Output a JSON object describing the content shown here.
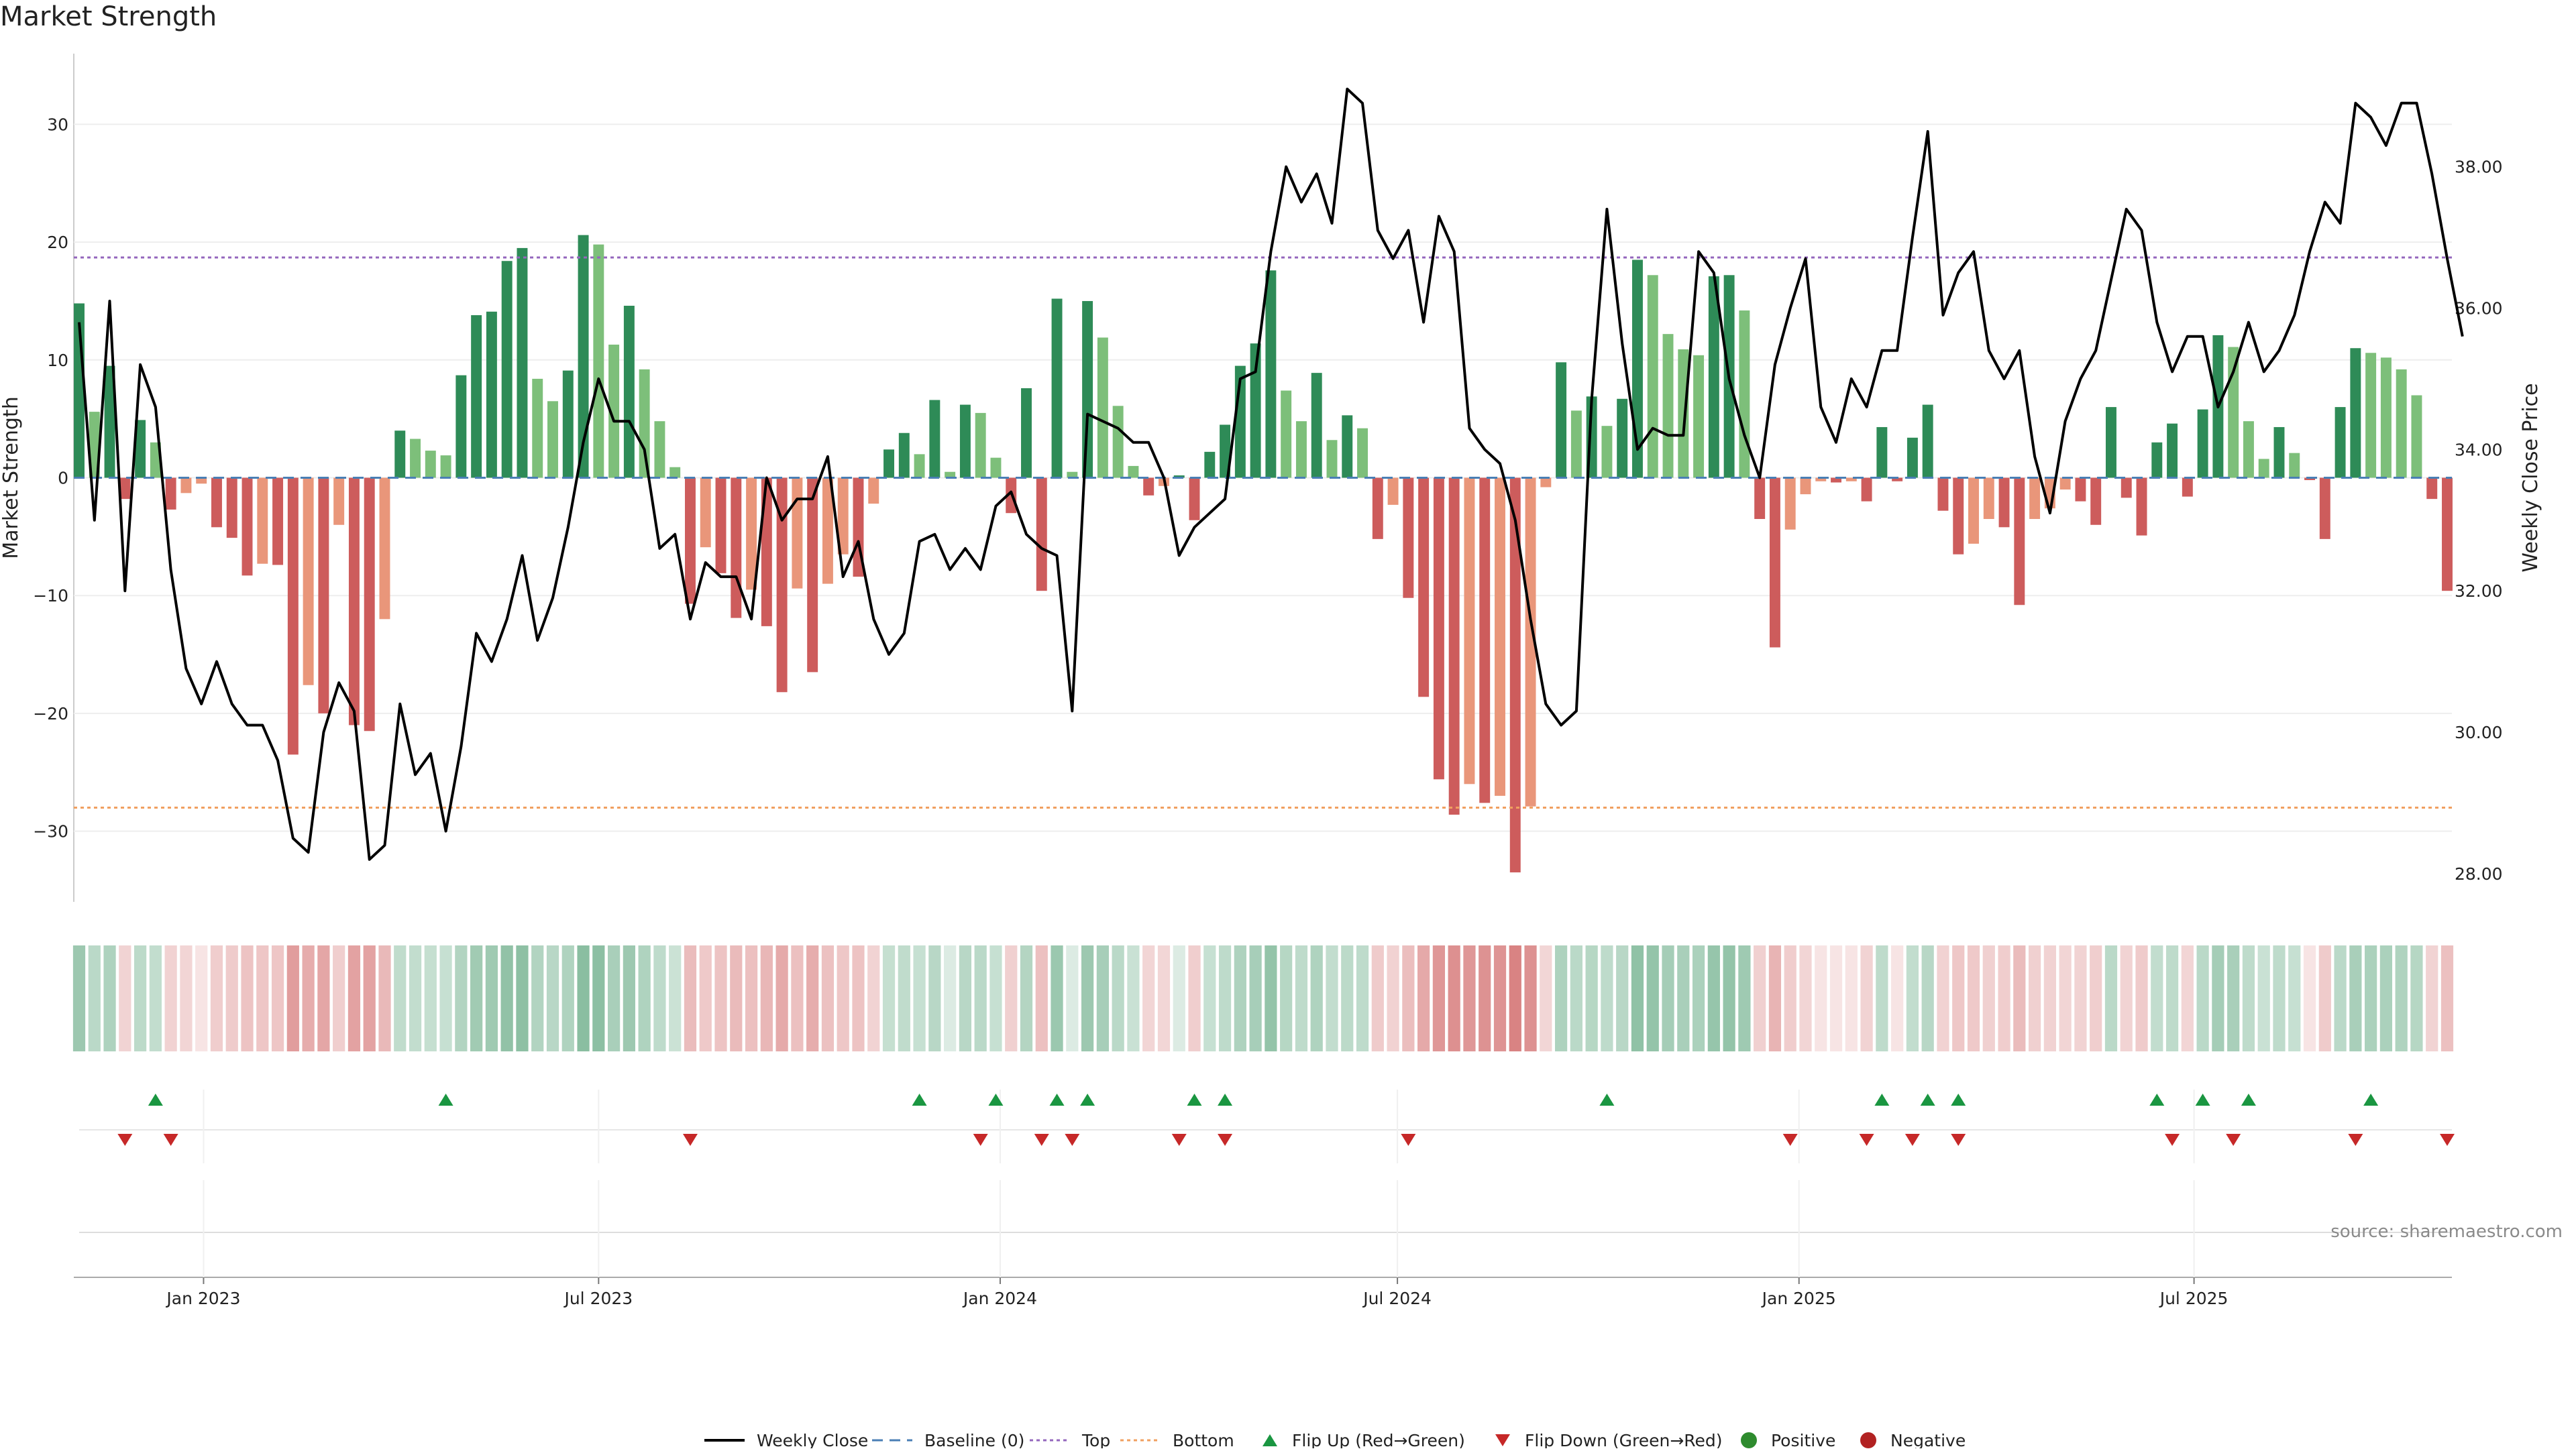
{
  "title": "Market Strength",
  "source": "source: sharemaestro.com",
  "chart_data": {
    "type": "bar",
    "title": "Market Strength",
    "ylabel": "Market Strength",
    "y2label": "Weekly Close Price",
    "ylim": [
      -36,
      36
    ],
    "y2lim": [
      27.6,
      39.6
    ],
    "yticks": [
      -30,
      -20,
      -10,
      0,
      10,
      20,
      30
    ],
    "yticks_labels": [
      "−30",
      "−20",
      "−10",
      "0",
      "10",
      "20",
      "30"
    ],
    "y2ticks": [
      28,
      30,
      32,
      34,
      36,
      38
    ],
    "y2ticks_labels": [
      "28.00",
      "30.00",
      "32.00",
      "34.00",
      "36.00",
      "38.00"
    ],
    "date_range": [
      "2022-11-05",
      "2025-10-25"
    ],
    "x_ticks": [
      {
        "date": "2023-01-01",
        "label": "Jan 2023"
      },
      {
        "date": "2023-07-01",
        "label": "Jul 2023"
      },
      {
        "date": "2024-01-01",
        "label": "Jan 2024"
      },
      {
        "date": "2024-07-01",
        "label": "Jul 2024"
      },
      {
        "date": "2025-01-01",
        "label": "Jan 2025"
      },
      {
        "date": "2025-07-01",
        "label": "Jul 2025"
      }
    ],
    "top_line": 18.7,
    "bottom_line": -28,
    "baseline": 0,
    "grid": true,
    "legend_position": "bottom-center",
    "weeks": 156,
    "strength": [
      14.8,
      5.6,
      9.5,
      -1.8,
      4.9,
      3.0,
      -2.7,
      -1.3,
      -0.5,
      -4.2,
      -5.1,
      -8.3,
      -7.3,
      -7.4,
      -23.5,
      -17.6,
      -20.0,
      -4.0,
      -21.0,
      -21.5,
      -12.0,
      4.0,
      3.3,
      2.3,
      1.9,
      8.7,
      13.8,
      14.1,
      18.4,
      19.5,
      8.4,
      6.5,
      9.1,
      20.6,
      19.8,
      11.3,
      14.6,
      9.2,
      4.8,
      0.9,
      -10.7,
      -5.9,
      -8.1,
      -11.9,
      -9.5,
      -12.6,
      -18.2,
      -9.4,
      -16.5,
      -9.0,
      -6.5,
      -8.4,
      -2.2,
      2.4,
      3.8,
      2.0,
      6.6,
      0.5,
      6.2,
      5.5,
      1.7,
      -3.0,
      7.6,
      -9.6,
      15.2,
      0.5,
      15.0,
      11.9,
      6.1,
      1.0,
      -1.5,
      -0.7,
      0.2,
      -3.6,
      2.2,
      4.5,
      9.5,
      11.4,
      17.6,
      7.4,
      4.8,
      8.9,
      3.2,
      5.3,
      4.2,
      -5.2,
      -2.3,
      -10.2,
      -18.6,
      -25.6,
      -28.6,
      -26.0,
      -27.6,
      -27.0,
      -33.5,
      -27.9,
      -0.8,
      9.8,
      5.7,
      6.9,
      4.4,
      6.7,
      18.5,
      17.2,
      12.2,
      10.9,
      10.4,
      17.1,
      17.2,
      14.2,
      -3.5,
      -14.4,
      -4.4,
      -1.4,
      -0.3,
      -0.4,
      -0.3,
      -2.0,
      4.3,
      -0.3,
      3.4,
      6.2,
      -2.8,
      -6.5,
      -5.6,
      -3.5,
      -4.2,
      -10.8,
      -3.5,
      -2.6,
      -1.0,
      -2.0,
      -4.0,
      6.0,
      -1.7,
      -4.9,
      3.0,
      4.6,
      -1.6,
      5.8,
      12.1,
      11.1,
      4.8,
      1.6,
      4.3,
      2.1,
      -0.2,
      -5.2,
      6.0,
      11.0,
      10.6,
      10.2,
      9.2,
      7.0,
      -1.8,
      -9.6
    ],
    "weekly_close": [
      35.8,
      33.0,
      36.1,
      32.0,
      35.2,
      34.6,
      32.3,
      30.9,
      30.4,
      31.0,
      30.4,
      30.1,
      30.1,
      29.6,
      28.5,
      28.3,
      30.0,
      30.7,
      30.3,
      28.2,
      28.4,
      30.4,
      29.4,
      29.7,
      28.6,
      29.8,
      31.4,
      31.0,
      31.6,
      32.5,
      31.3,
      31.9,
      32.9,
      34.1,
      35.0,
      34.4,
      34.4,
      34.0,
      32.6,
      32.8,
      31.6,
      32.4,
      32.2,
      32.2,
      31.6,
      33.6,
      33.0,
      33.3,
      33.3,
      33.9,
      32.2,
      32.7,
      31.6,
      31.1,
      31.4,
      32.7,
      32.8,
      32.3,
      32.6,
      32.3,
      33.2,
      33.4,
      32.8,
      32.6,
      32.5,
      30.3,
      34.5,
      34.4,
      34.3,
      34.1,
      34.1,
      33.6,
      32.5,
      32.9,
      33.1,
      33.3,
      35.0,
      35.1,
      36.8,
      38.0,
      37.5,
      37.9,
      37.2,
      39.1,
      38.9,
      37.1,
      36.7,
      37.1,
      35.8,
      37.3,
      36.8,
      34.3,
      34.0,
      33.8,
      33.0,
      31.6,
      30.4,
      30.1,
      30.3,
      34.7,
      37.4,
      35.5,
      34.0,
      34.3,
      34.2,
      34.2,
      36.8,
      36.5,
      35.0,
      34.2,
      33.6,
      35.2,
      36.0,
      36.7,
      34.6,
      34.1,
      35.0,
      34.6,
      35.4,
      35.4,
      37.0,
      38.5,
      35.9,
      36.5,
      36.8,
      35.4,
      35.0,
      35.4,
      33.9,
      33.1,
      34.4,
      35.0,
      35.4,
      36.4,
      37.4,
      37.1,
      35.8,
      35.1,
      35.6,
      35.6,
      34.6,
      35.1,
      35.8,
      35.1,
      35.4,
      35.9,
      36.8,
      37.5,
      37.2,
      38.9,
      38.7,
      38.3,
      38.9,
      38.9,
      37.9,
      36.7,
      35.6
    ],
    "flip_up": [
      "2022-12-10",
      "2023-04-22",
      "2023-11-25",
      "2023-12-30",
      "2024-01-27",
      "2024-02-10",
      "2024-03-30",
      "2024-04-13",
      "2024-10-05",
      "2025-02-08",
      "2025-03-01",
      "2025-03-15",
      "2025-06-14",
      "2025-07-05",
      "2025-07-26",
      "2025-09-20"
    ],
    "flip_down": [
      "2022-11-26",
      "2022-12-17",
      "2023-08-12",
      "2023-12-23",
      "2024-01-20",
      "2024-02-03",
      "2024-03-23",
      "2024-04-13",
      "2024-07-06",
      "2024-12-28",
      "2025-02-01",
      "2025-02-22",
      "2025-03-15",
      "2025-06-21",
      "2025-07-19",
      "2025-09-13",
      "2025-10-25"
    ],
    "colors": {
      "strong_positive": "#2e8b57",
      "positive": "#7dbf7a",
      "strong_negative": "#cd5c5c",
      "negative": "#e9967a",
      "line": "#000000",
      "baseline": "#4a7fb5",
      "top": "#9467bd",
      "bottom": "#f0a060",
      "flip_up": "#1a9641",
      "flip_down": "#c62828",
      "positive_dot": "#2e8b2e",
      "negative_dot": "#b22222"
    }
  },
  "legend": [
    {
      "key": "weekly-close",
      "label": "Weekly Close"
    },
    {
      "key": "baseline",
      "label": "Baseline (0)"
    },
    {
      "key": "top",
      "label": "Top"
    },
    {
      "key": "bottom",
      "label": "Bottom"
    },
    {
      "key": "flip-up",
      "label": "Flip Up (Red→Green)"
    },
    {
      "key": "flip-down",
      "label": "Flip Down (Green→Red)"
    },
    {
      "key": "positive",
      "label": "Positive"
    },
    {
      "key": "negative",
      "label": "Negative"
    }
  ]
}
